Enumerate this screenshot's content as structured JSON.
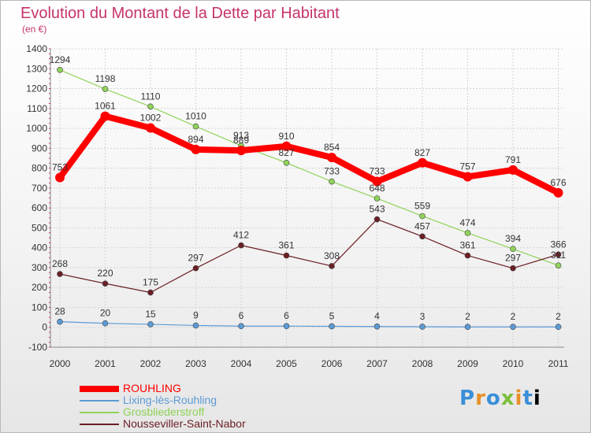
{
  "chart_data": {
    "type": "line",
    "title": "Evolution du Montant de la Dette par Habitant",
    "subtitle": "(en €)",
    "xlabel": "",
    "ylabel": "",
    "x": [
      "2000",
      "2001",
      "2002",
      "2003",
      "2004",
      "2005",
      "2006",
      "2007",
      "2008",
      "2009",
      "2010",
      "2011"
    ],
    "ylim": [
      -100,
      1400
    ],
    "yticks": [
      -100,
      0,
      100,
      200,
      300,
      400,
      500,
      600,
      700,
      800,
      900,
      1000,
      1100,
      1200,
      1300,
      1400
    ],
    "grid": true,
    "legend_position": "bottom-left",
    "series": [
      {
        "name": "ROUHLING",
        "color": "#ff0000",
        "values": [
          753,
          1061,
          1002,
          894,
          889,
          910,
          854,
          733,
          827,
          757,
          791,
          676
        ],
        "labels": [
          "753",
          "1061",
          "1002",
          "894",
          "889",
          "910",
          "854",
          "733",
          "827",
          "757",
          "791",
          "676"
        ]
      },
      {
        "name": "Lixing-lès-Rouhling",
        "color": "#5b9bd5",
        "values": [
          28,
          20,
          15,
          9,
          6,
          6,
          5,
          4,
          3,
          2,
          2,
          2
        ],
        "labels": [
          "28",
          "20",
          "15",
          "9",
          "6",
          "6",
          "5",
          "4",
          "3",
          "2",
          "2",
          "2"
        ]
      },
      {
        "name": "Grosbliederstroff",
        "color": "#8fd35a",
        "values": [
          1294,
          1198,
          1110,
          1010,
          913,
          827,
          733,
          648,
          559,
          474,
          394,
          311
        ],
        "labels": [
          "1294",
          "1198",
          "1110",
          "1010",
          "913",
          "827",
          "733",
          "648",
          "559",
          "474",
          "394",
          "311"
        ]
      },
      {
        "name": "Nousseviller-Saint-Nabor",
        "color": "#6b1f24",
        "values": [
          268,
          220,
          175,
          297,
          412,
          361,
          308,
          543,
          457,
          361,
          297,
          366
        ],
        "labels": [
          "268",
          "220",
          "175",
          "297",
          "412",
          "361",
          "308",
          "543",
          "457",
          "361",
          "297",
          "366"
        ]
      }
    ]
  },
  "logo_text": [
    "P",
    "r",
    "o",
    "x",
    "i",
    "t",
    "i"
  ]
}
